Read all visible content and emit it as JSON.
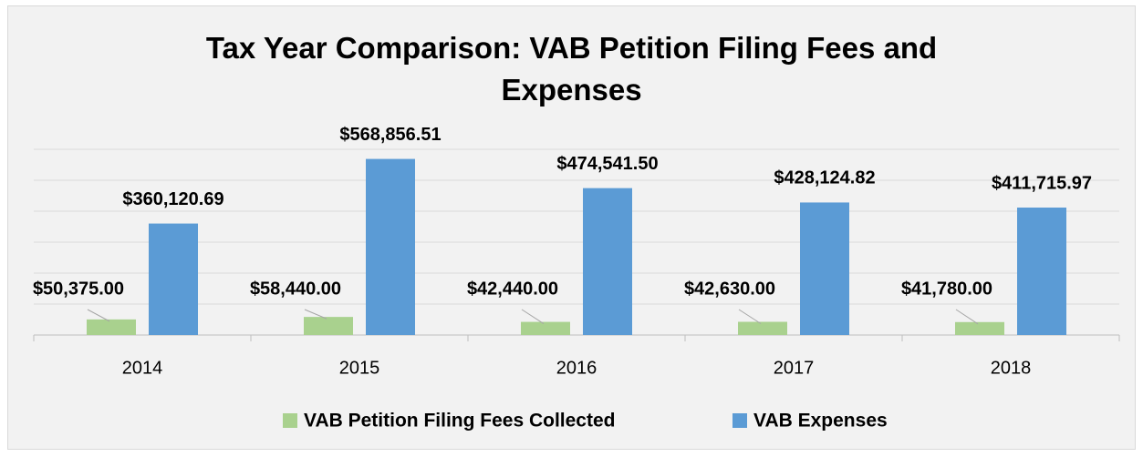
{
  "chart_data": {
    "type": "bar",
    "title": "Tax Year Comparison: VAB Petition Filing Fees and Expenses",
    "categories": [
      "2014",
      "2015",
      "2016",
      "2017",
      "2018"
    ],
    "series": [
      {
        "name": "VAB Petition Filing Fees Collected",
        "color": "#a9d18e",
        "values": [
          50375.0,
          58440.0,
          42440.0,
          42630.0,
          41780.0
        ],
        "value_labels": [
          "$50,375.00",
          "$58,440.00",
          "$42,440.00",
          "$42,630.00",
          "$41,780.00"
        ]
      },
      {
        "name": "VAB Expenses",
        "color": "#5b9bd5",
        "values": [
          360120.69,
          568856.51,
          474541.5,
          428124.82,
          411715.97
        ],
        "value_labels": [
          "$360,120.69",
          "$568,856.51",
          "$474,541.50",
          "$428,124.82",
          "$411,715.97"
        ]
      }
    ],
    "ylim": [
      0,
      600000
    ],
    "yticks": [
      0,
      100000,
      200000,
      300000,
      400000,
      500000,
      600000
    ],
    "grid": true,
    "legend": "bottom"
  }
}
